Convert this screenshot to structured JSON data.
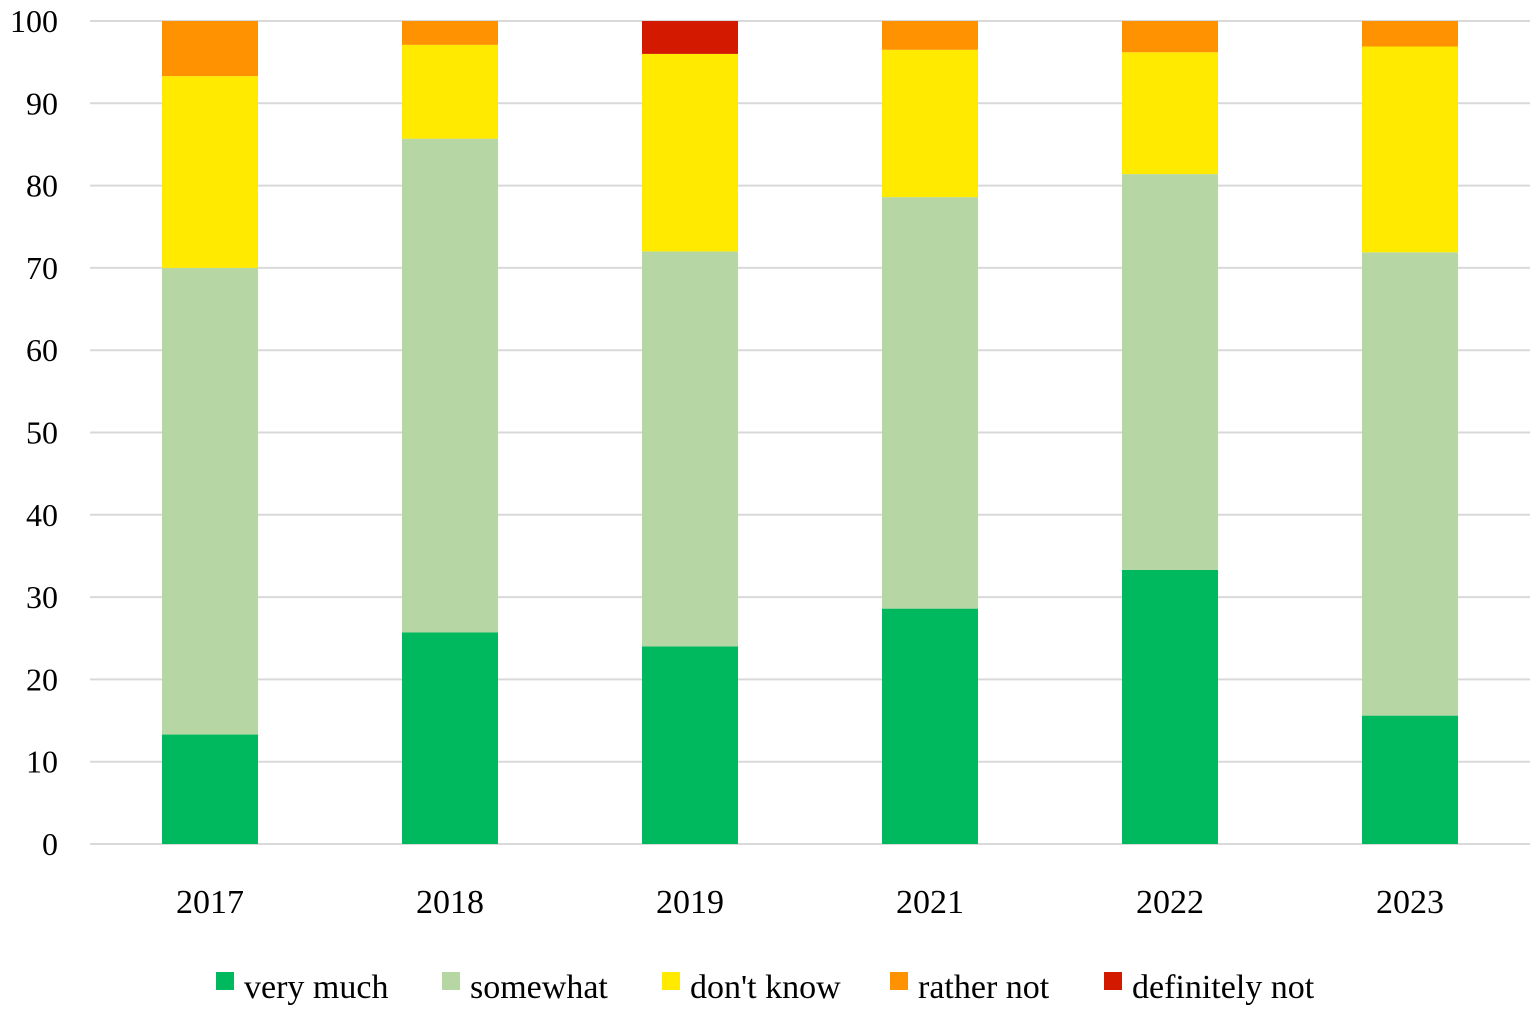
{
  "chart_data": {
    "type": "bar",
    "stacked": true,
    "title": "",
    "xlabel": "",
    "ylabel": "",
    "ylim": [
      0,
      100
    ],
    "yticks": [
      0,
      10,
      20,
      30,
      40,
      50,
      60,
      70,
      80,
      90,
      100
    ],
    "grid": true,
    "legend_position": "bottom",
    "categories": [
      "2017",
      "2018",
      "2019",
      "2021",
      "2022",
      "2023"
    ],
    "series": [
      {
        "name": "very much",
        "color": "#00b95f",
        "values": [
          13.3,
          25.7,
          24.0,
          28.6,
          33.3,
          15.6
        ]
      },
      {
        "name": "somewhat",
        "color": "#b6d7a4",
        "values": [
          56.7,
          60.0,
          48.0,
          50.0,
          48.1,
          56.3
        ]
      },
      {
        "name": "don't know",
        "color": "#ffea00",
        "values": [
          23.3,
          11.4,
          24.0,
          17.9,
          14.8,
          25.0
        ]
      },
      {
        "name": "rather not",
        "color": "#ff9200",
        "values": [
          6.7,
          2.9,
          0.0,
          3.5,
          3.8,
          3.1
        ]
      },
      {
        "name": "definitely not",
        "color": "#d31a00",
        "values": [
          0.0,
          0.0,
          4.0,
          0.0,
          0.0,
          0.0
        ]
      }
    ]
  }
}
